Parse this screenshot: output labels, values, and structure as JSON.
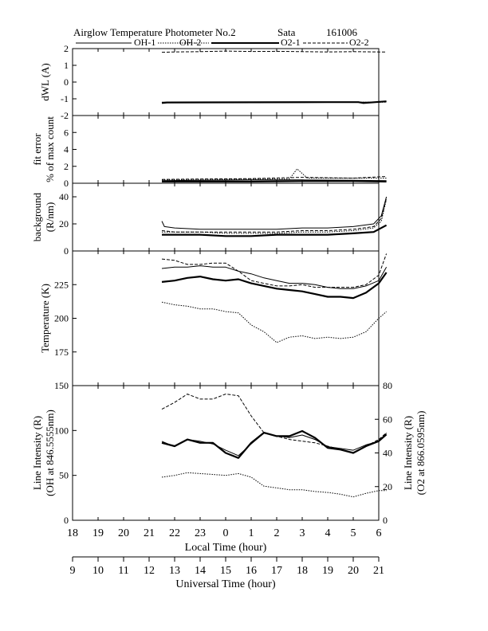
{
  "header": {
    "title": "Airglow Temperature Photometer No.2",
    "station": "Sata",
    "date": "161006"
  },
  "legend": [
    {
      "label": "OH-1",
      "style": "solid-thin"
    },
    {
      "label": "OH-2",
      "style": "dotted"
    },
    {
      "label": "O2-1",
      "style": "solid-thick"
    },
    {
      "label": "O2-2",
      "style": "dashed"
    }
  ],
  "chart_data": [
    {
      "type": "line",
      "panel": "dwl",
      "ylabel": "dWL (A)",
      "ylim": [
        -2,
        2
      ],
      "yticks": [
        -2,
        -1,
        0,
        1,
        2
      ],
      "yticklabels": [
        "-2",
        "-1",
        "0",
        "1",
        "2"
      ],
      "xlim": [
        18,
        30
      ],
      "series": [
        {
          "name": "OH-1",
          "style": "solid-thin",
          "x": [
            21.5,
            22,
            23,
            24,
            25,
            26,
            27,
            28,
            29,
            29.9,
            30.3
          ],
          "y": [
            -1.2,
            -1.2,
            -1.2,
            -1.2,
            -1.2,
            -1.2,
            -1.2,
            -1.2,
            -1.2,
            -1.2,
            -1.18
          ]
        },
        {
          "name": "OH-2",
          "style": "dotted",
          "x": [
            21.5,
            30.3
          ],
          "y": [
            -1.22,
            -1.2
          ]
        },
        {
          "name": "O2-1",
          "style": "solid-thick",
          "x": [
            21.5,
            21.7,
            28.0,
            29.2,
            29.4,
            30.3
          ],
          "y": [
            -1.25,
            -1.22,
            -1.2,
            -1.2,
            -1.25,
            -1.15
          ]
        },
        {
          "name": "O2-2",
          "style": "dashed",
          "x": [
            21.5,
            22,
            23,
            24,
            25,
            26,
            27,
            28,
            29,
            30,
            30.3
          ],
          "y": [
            1.78,
            1.8,
            1.82,
            1.85,
            1.83,
            1.84,
            1.82,
            1.8,
            1.82,
            1.8,
            1.8
          ]
        }
      ]
    },
    {
      "type": "line",
      "panel": "fit-error",
      "ylabel": "fit error",
      "ylabel2": "% of max count",
      "ylim": [
        0,
        8
      ],
      "yticks": [
        0,
        2,
        4,
        6
      ],
      "yticklabels": [
        "0",
        "2",
        "4",
        "6"
      ],
      "xlim": [
        18,
        30
      ],
      "series": [
        {
          "name": "OH-1",
          "style": "solid-thin",
          "x": [
            21.5,
            23,
            25,
            27,
            29,
            30.3
          ],
          "y": [
            0.3,
            0.35,
            0.4,
            0.4,
            0.35,
            0.3
          ]
        },
        {
          "name": "OH-2",
          "style": "dotted",
          "x": [
            21.5,
            23,
            25,
            26.5,
            26.8,
            27.2,
            28,
            30.3
          ],
          "y": [
            0.4,
            0.45,
            0.5,
            0.5,
            1.7,
            0.6,
            0.6,
            0.6
          ]
        },
        {
          "name": "O2-1",
          "style": "solid-thick",
          "x": [
            21.5,
            23,
            25,
            27,
            29,
            30.3
          ],
          "y": [
            0.2,
            0.2,
            0.2,
            0.25,
            0.25,
            0.2
          ]
        },
        {
          "name": "O2-2",
          "style": "dashed",
          "x": [
            21.5,
            23,
            25,
            27,
            29,
            30.3
          ],
          "y": [
            0.45,
            0.5,
            0.55,
            0.7,
            0.6,
            0.8
          ]
        }
      ]
    },
    {
      "type": "line",
      "panel": "background",
      "ylabel": "background",
      "ylabel2": "(R/nm)",
      "ylim": [
        0,
        50
      ],
      "yticks": [
        0,
        20,
        40
      ],
      "yticklabels": [
        "0",
        "20",
        "40"
      ],
      "xlim": [
        18,
        30
      ],
      "series": [
        {
          "name": "OH-1",
          "style": "solid-thin",
          "x": [
            21.5,
            21.6,
            22,
            23,
            24,
            25,
            26,
            27,
            28,
            29,
            29.8,
            30.1,
            30.3
          ],
          "y": [
            22,
            18,
            17,
            16,
            16,
            16,
            16,
            17,
            17,
            18,
            20,
            26,
            40
          ]
        },
        {
          "name": "OH-2",
          "style": "dotted",
          "x": [
            21.5,
            22,
            23,
            24,
            25,
            26,
            27,
            28,
            29,
            29.8,
            30.1,
            30.3
          ],
          "y": [
            14,
            14,
            14,
            13,
            13,
            13,
            14,
            14,
            15,
            17,
            22,
            38
          ]
        },
        {
          "name": "O2-1",
          "style": "solid-thick",
          "x": [
            21.5,
            22,
            23,
            24,
            25,
            26,
            27,
            28,
            29,
            29.8,
            30.3
          ],
          "y": [
            12,
            12,
            12,
            11,
            11,
            12,
            12,
            12,
            13,
            14,
            19
          ]
        },
        {
          "name": "O2-2",
          "style": "dashed",
          "x": [
            21.5,
            22,
            23,
            24,
            25,
            26,
            27,
            28,
            29,
            29.8,
            30.1,
            30.3
          ],
          "y": [
            15,
            14,
            14,
            14,
            14,
            14,
            15,
            15,
            16,
            18,
            24,
            39
          ]
        }
      ]
    },
    {
      "type": "line",
      "panel": "temperature",
      "ylabel": "Temperature (K)",
      "ylim": [
        150,
        250
      ],
      "yticks": [
        175,
        200,
        225
      ],
      "yticklabels": [
        "175",
        "200",
        "225"
      ],
      "xlim": [
        18,
        30
      ],
      "series": [
        {
          "name": "OH-1",
          "style": "solid-thin",
          "x": [
            21.5,
            22,
            22.5,
            23,
            23.5,
            24,
            24.5,
            25,
            25.5,
            26,
            26.5,
            27,
            27.5,
            28,
            28.5,
            29,
            29.5,
            30,
            30.3
          ],
          "y": [
            237,
            238,
            238,
            239,
            238,
            238,
            235,
            233,
            230,
            228,
            226,
            226,
            225,
            223,
            222,
            222,
            224,
            228,
            238
          ]
        },
        {
          "name": "OH-2",
          "style": "dotted",
          "x": [
            21.5,
            22,
            22.5,
            23,
            23.5,
            24,
            24.5,
            25,
            25.5,
            26,
            26.5,
            27,
            27.5,
            28,
            28.5,
            29,
            29.5,
            30,
            30.3
          ],
          "y": [
            212,
            210,
            209,
            207,
            207,
            205,
            204,
            195,
            190,
            182,
            186,
            187,
            185,
            186,
            185,
            186,
            190,
            200,
            205
          ]
        },
        {
          "name": "O2-1",
          "style": "solid-thick",
          "x": [
            21.5,
            22,
            22.5,
            23,
            23.5,
            24,
            24.5,
            25,
            25.5,
            26,
            26.5,
            27,
            27.5,
            28,
            28.5,
            29,
            29.5,
            30,
            30.3
          ],
          "y": [
            227,
            228,
            230,
            231,
            229,
            228,
            229,
            226,
            224,
            222,
            221,
            220,
            218,
            216,
            216,
            215,
            219,
            226,
            234
          ]
        },
        {
          "name": "O2-2",
          "style": "dashed",
          "x": [
            21.5,
            22,
            22.5,
            23,
            23.5,
            24,
            24.5,
            25,
            25.5,
            26,
            26.5,
            27,
            27.5,
            28,
            28.5,
            29,
            29.5,
            30,
            30.3
          ],
          "y": [
            244,
            243,
            240,
            240,
            241,
            241,
            235,
            228,
            226,
            224,
            224,
            225,
            223,
            223,
            223,
            223,
            225,
            232,
            248
          ]
        }
      ]
    },
    {
      "type": "line",
      "panel": "line-intensity",
      "ylabel": "Line Intensity (R)",
      "ylabel2": "(OH at 846.5555nm)",
      "ylabel_right": "Line Intensity (R)",
      "ylabel_right2": "(O2 at 866.0595nm)",
      "ylim": [
        0,
        150
      ],
      "yticks": [
        0,
        50,
        100,
        150
      ],
      "yticklabels": [
        "0",
        "50",
        "100",
        "150"
      ],
      "ylim_right": [
        0,
        80
      ],
      "yticks_right": [
        0,
        20,
        40,
        60,
        80
      ],
      "yticklabels_right": [
        "0",
        "20",
        "40",
        "60",
        "80"
      ],
      "xlim": [
        18,
        30
      ],
      "series": [
        {
          "name": "OH-1",
          "style": "solid-thin",
          "axis": "left",
          "x": [
            21.5,
            22,
            22.5,
            23,
            23.5,
            24,
            24.5,
            25,
            25.5,
            26,
            26.5,
            27,
            27.5,
            28,
            28.5,
            29,
            29.5,
            30,
            30.3
          ],
          "y": [
            88,
            82,
            90,
            88,
            85,
            78,
            72,
            85,
            97,
            94,
            92,
            95,
            90,
            82,
            80,
            78,
            84,
            88,
            97
          ]
        },
        {
          "name": "OH-2",
          "style": "dotted",
          "axis": "left",
          "x": [
            21.5,
            22,
            22.5,
            23,
            23.5,
            24,
            24.5,
            25,
            25.5,
            26,
            26.5,
            27,
            27.5,
            28,
            28.5,
            29,
            29.5,
            30,
            30.3
          ],
          "y": [
            48,
            50,
            53,
            52,
            51,
            50,
            52,
            48,
            38,
            36,
            34,
            34,
            32,
            31,
            29,
            26,
            30,
            33,
            33
          ]
        },
        {
          "name": "O2-1",
          "style": "solid-thick",
          "axis": "right",
          "x": [
            21.5,
            22,
            22.5,
            23,
            23.5,
            24,
            24.5,
            25,
            25.5,
            26,
            26.5,
            27,
            27.5,
            28,
            28.5,
            29,
            29.5,
            30,
            30.3
          ],
          "y": [
            46,
            44,
            48,
            46,
            46,
            40,
            37,
            46,
            52,
            50,
            50,
            53,
            49,
            43,
            42,
            40,
            44,
            47,
            51
          ]
        },
        {
          "name": "O2-2",
          "style": "dashed",
          "axis": "right",
          "x": [
            21.5,
            22,
            22.5,
            23,
            23.5,
            24,
            24.5,
            25,
            25.5,
            26,
            26.5,
            27,
            27.5,
            28,
            28.5,
            29,
            29.5,
            30,
            30.3
          ],
          "y": [
            66,
            70,
            75,
            72,
            72,
            75,
            74,
            62,
            52,
            50,
            48,
            47,
            46,
            44,
            42,
            40,
            44,
            48,
            52
          ]
        }
      ]
    }
  ],
  "x_axis_local": {
    "label": "Local Time (hour)",
    "ticks": [
      18,
      19,
      20,
      21,
      22,
      23,
      24,
      25,
      26,
      27,
      28,
      29,
      30
    ],
    "ticklabels": [
      "18",
      "19",
      "20",
      "21",
      "22",
      "23",
      "0",
      "1",
      "2",
      "3",
      "4",
      "5",
      "6"
    ]
  },
  "x_axis_ut": {
    "label": "Universal Time (hour)",
    "ticks": [
      18,
      19,
      20,
      21,
      22,
      23,
      24,
      25,
      26,
      27,
      28,
      29,
      30
    ],
    "ticklabels": [
      "9",
      "10",
      "11",
      "12",
      "13",
      "14",
      "15",
      "16",
      "17",
      "18",
      "19",
      "20",
      "21"
    ]
  }
}
